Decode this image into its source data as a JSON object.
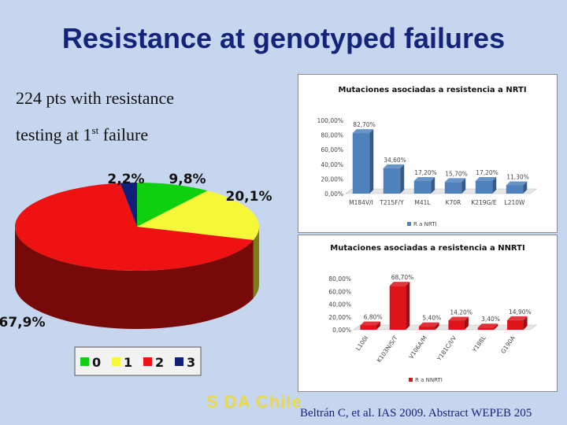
{
  "slide": {
    "title": "Resistance at genotyped failures",
    "intro_line1": "224 pts with resistance",
    "intro_line2_pre": "testing at 1",
    "intro_line2_sup": "st",
    "intro_line2_post": " failure",
    "logo": "S DA Chile",
    "citation": "Beltrán C, et al. IAS 2009. Abstract WEPEB 205"
  },
  "chart_data": [
    {
      "type": "pie",
      "categories": [
        "0",
        "1",
        "2",
        "3"
      ],
      "values": [
        9.8,
        20.1,
        67.9,
        2.2
      ],
      "labels": [
        "9,8%",
        "20,1%",
        "67,9%",
        "2,2%"
      ],
      "colors": [
        "#0ed00e",
        "#f7f73a",
        "#ee1212",
        "#10207a"
      ],
      "legend": "bottom"
    },
    {
      "type": "bar",
      "title": "Mutaciones asociadas a resistencia a NRTI",
      "categories": [
        "M184V/I",
        "T215F/Y",
        "M41L",
        "K70R",
        "K219G/E",
        "L210W"
      ],
      "series": [
        {
          "name": "R a NRTI",
          "values": [
            82.7,
            34.6,
            17.2,
            15.7,
            17.2,
            11.3
          ]
        }
      ],
      "value_labels": [
        "82,70%",
        "34,60%",
        "17,20%",
        "15,70%",
        "17,20%",
        "11,30%"
      ],
      "ylim": [
        0,
        100
      ],
      "yticks": [
        "0,00%",
        "20,00%",
        "40,00%",
        "60,00%",
        "80,00%",
        "100,00%"
      ],
      "color": "#4f81bd",
      "legend": "bottom"
    },
    {
      "type": "bar",
      "title": "Mutaciones asociadas a resistencia a NNRTI",
      "categories": [
        "L100I",
        "K103N/S/T",
        "V106A/M",
        "Y181C/I/V",
        "Y188L",
        "G190A"
      ],
      "series": [
        {
          "name": "R a NNRTI",
          "values": [
            6.8,
            68.7,
            5.4,
            14.2,
            3.4,
            14.9
          ]
        }
      ],
      "value_labels": [
        "6,80%",
        "68,70%",
        "5,40%",
        "14,20%",
        "3,40%",
        "14,90%"
      ],
      "ylim": [
        0,
        80
      ],
      "yticks": [
        "0,00%",
        "20,00%",
        "40,00%",
        "60,00%",
        "80,00%"
      ],
      "color": "#e0121a",
      "legend": "bottom"
    }
  ]
}
